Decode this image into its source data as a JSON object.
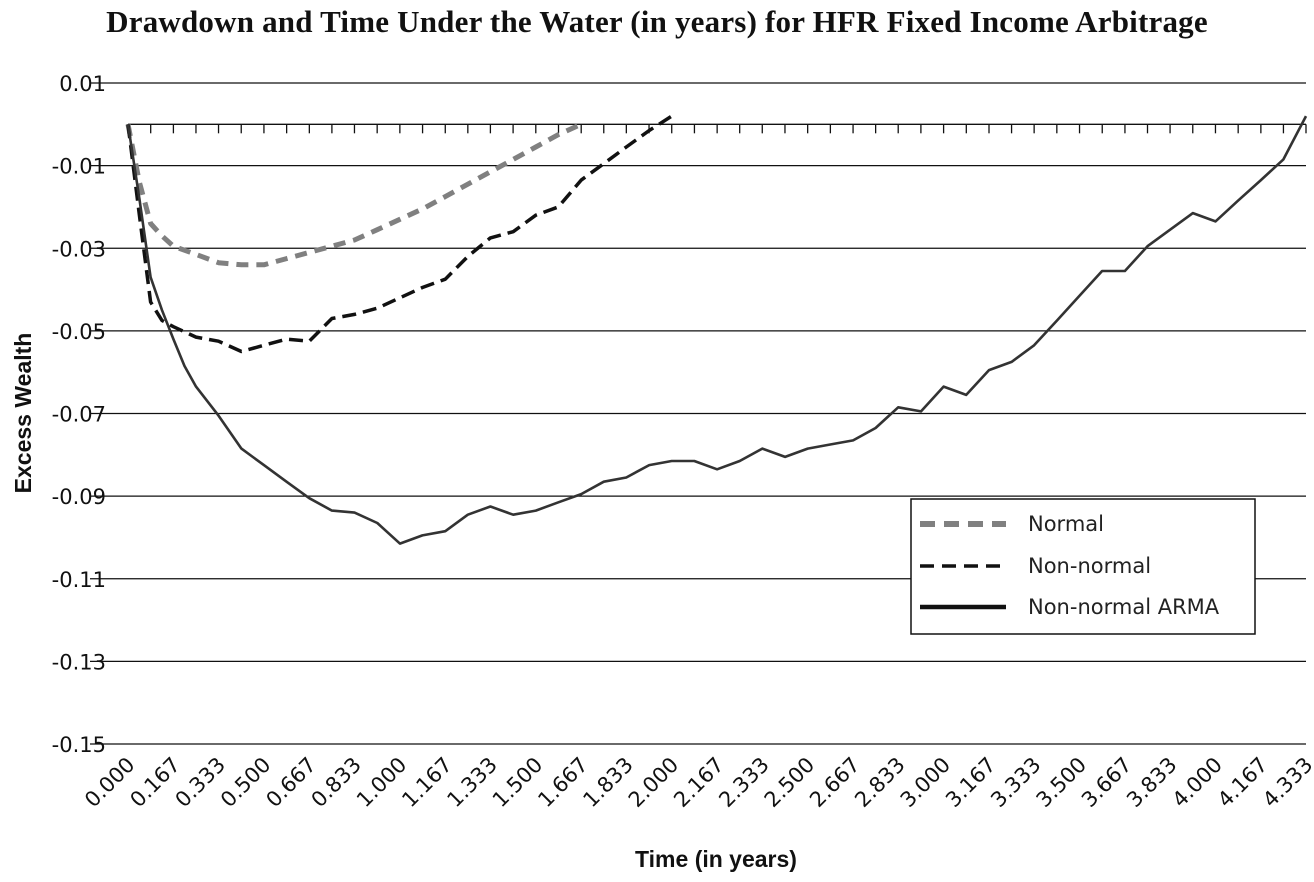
{
  "chart_data": {
    "type": "line",
    "title": "Drawdown and Time Under the Water (in years) for HFR Fixed Income Arbitrage",
    "xlabel": "Time (in years)",
    "ylabel": "Excess Wealth",
    "x_tick_labels": [
      "0.000",
      "0.167",
      "0.333",
      "0.500",
      "0.667",
      "0.833",
      "1.000",
      "1.167",
      "1.333",
      "1.500",
      "1.667",
      "1.833",
      "2.000",
      "2.167",
      "2.333",
      "2.500",
      "2.667",
      "2.833",
      "3.000",
      "3.167",
      "3.333",
      "3.500",
      "3.667",
      "3.833",
      "4.000",
      "4.167",
      "4.333"
    ],
    "y_tick_labels": [
      "0.01",
      "-0.01",
      "-0.03",
      "-0.05",
      "-0.07",
      "-0.09",
      "-0.11",
      "-0.13",
      "-0.15"
    ],
    "xlim": [
      0,
      4.333
    ],
    "ylim": [
      -0.15,
      0.01
    ],
    "grid": true,
    "legend_position": "right",
    "series": [
      {
        "name": "Normal",
        "style": "dashed",
        "color": "#808080",
        "x": [
          0,
          0.042,
          0.083,
          0.125,
          0.167,
          0.25,
          0.333,
          0.417,
          0.5,
          0.583,
          0.667,
          0.75,
          0.833,
          0.917,
          1.0,
          1.083,
          1.167,
          1.25,
          1.333,
          1.417,
          1.5,
          1.583,
          1.667
        ],
        "values": [
          0,
          -0.014,
          -0.024,
          -0.027,
          -0.0295,
          -0.0315,
          -0.0335,
          -0.034,
          -0.034,
          -0.0325,
          -0.031,
          -0.0295,
          -0.028,
          -0.0255,
          -0.023,
          -0.0205,
          -0.0175,
          -0.0145,
          -0.0115,
          -0.0085,
          -0.0055,
          -0.0025,
          0.0
        ]
      },
      {
        "name": "Non-normal",
        "style": "dashed",
        "color": "#111111",
        "x": [
          0,
          0.042,
          0.083,
          0.125,
          0.167,
          0.25,
          0.333,
          0.417,
          0.5,
          0.583,
          0.667,
          0.75,
          0.833,
          0.917,
          1.0,
          1.083,
          1.167,
          1.25,
          1.333,
          1.417,
          1.5,
          1.583,
          1.667,
          1.75,
          1.833,
          1.917,
          2.0
        ],
        "values": [
          0,
          -0.022,
          -0.043,
          -0.0475,
          -0.049,
          -0.0515,
          -0.0525,
          -0.055,
          -0.0535,
          -0.052,
          -0.0525,
          -0.047,
          -0.046,
          -0.0445,
          -0.042,
          -0.0395,
          -0.0375,
          -0.032,
          -0.0275,
          -0.026,
          -0.022,
          -0.02,
          -0.0135,
          -0.0095,
          -0.0055,
          -0.0015,
          0.002
        ]
      },
      {
        "name": "Non-normal ARMA",
        "style": "solid",
        "color": "#333333",
        "x": [
          0,
          0.042,
          0.083,
          0.125,
          0.167,
          0.208,
          0.25,
          0.333,
          0.417,
          0.5,
          0.583,
          0.667,
          0.75,
          0.833,
          0.917,
          1.0,
          1.083,
          1.167,
          1.25,
          1.333,
          1.417,
          1.5,
          1.583,
          1.667,
          1.75,
          1.833,
          1.917,
          2.0,
          2.083,
          2.167,
          2.25,
          2.333,
          2.417,
          2.5,
          2.583,
          2.667,
          2.75,
          2.833,
          2.917,
          3.0,
          3.083,
          3.167,
          3.25,
          3.333,
          3.417,
          3.5,
          3.583,
          3.667,
          3.75,
          3.833,
          3.917,
          4.0,
          4.083,
          4.167,
          4.25,
          4.333
        ],
        "values": [
          0,
          -0.018,
          -0.037,
          -0.045,
          -0.052,
          -0.0585,
          -0.0635,
          -0.0705,
          -0.0785,
          -0.0825,
          -0.0865,
          -0.0905,
          -0.0935,
          -0.094,
          -0.0965,
          -0.1015,
          -0.0995,
          -0.0985,
          -0.0945,
          -0.0925,
          -0.0945,
          -0.0935,
          -0.0915,
          -0.0895,
          -0.0865,
          -0.0855,
          -0.0825,
          -0.0815,
          -0.0815,
          -0.0835,
          -0.0815,
          -0.0785,
          -0.0805,
          -0.0785,
          -0.0775,
          -0.0765,
          -0.0735,
          -0.0685,
          -0.0695,
          -0.0635,
          -0.0655,
          -0.0595,
          -0.0575,
          -0.0535,
          -0.0475,
          -0.0415,
          -0.0355,
          -0.0355,
          -0.0295,
          -0.0255,
          -0.0215,
          -0.0235,
          -0.0185,
          -0.0135,
          -0.0085,
          0.002
        ]
      }
    ]
  }
}
